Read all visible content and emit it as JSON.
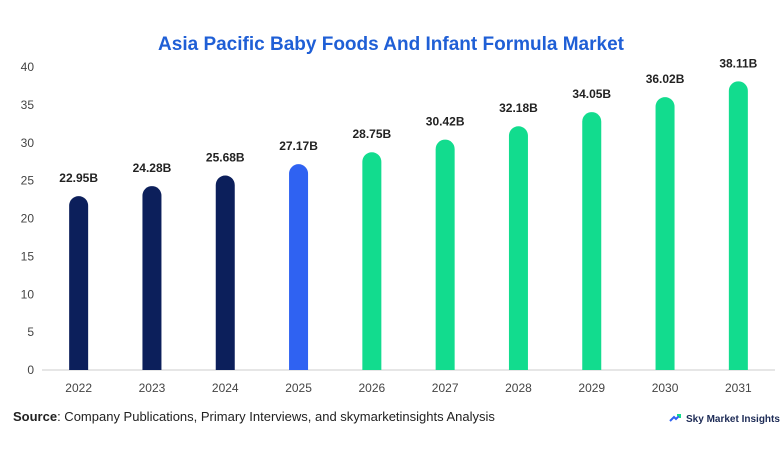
{
  "chart_data": {
    "type": "bar",
    "title": "Asia Pacific Baby Foods And Infant Formula Market",
    "categories": [
      "2022",
      "2023",
      "2024",
      "2025",
      "2026",
      "2027",
      "2028",
      "2029",
      "2030",
      "2031"
    ],
    "values": [
      22.95,
      24.28,
      25.68,
      27.17,
      28.75,
      30.42,
      32.18,
      34.05,
      36.02,
      38.11
    ],
    "data_labels": [
      "22.95B",
      "24.28B",
      "25.68B",
      "27.17B",
      "28.75B",
      "30.42B",
      "32.18B",
      "34.05B",
      "36.02B",
      "38.11B"
    ],
    "bar_colors": [
      "#0c1f5b",
      "#0c1f5b",
      "#0c1f5b",
      "#2f62f2",
      "#12dc8e",
      "#12dc8e",
      "#12dc8e",
      "#12dc8e",
      "#12dc8e",
      "#12dc8e"
    ],
    "ylim": [
      0,
      40
    ],
    "yticks": [
      0,
      5,
      10,
      15,
      20,
      25,
      30,
      35,
      40
    ],
    "xlabel": "",
    "ylabel": "",
    "grid": false,
    "legend": "none"
  },
  "footer": {
    "source_label": "Source",
    "source_text": ": Company Publications, Primary Interviews, and skymarketinsights Analysis",
    "brand": "Sky Market Insights"
  },
  "colors": {
    "title": "#1f5fd6",
    "historical": "#0c1f5b",
    "current": "#2f62f2",
    "forecast": "#12dc8e"
  },
  "icons": {
    "brand": "sky-market-insights-logo-icon"
  }
}
